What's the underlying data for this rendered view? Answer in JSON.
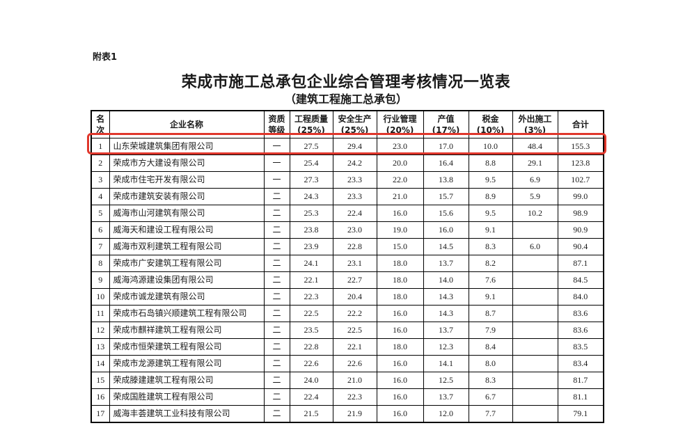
{
  "doc": {
    "annex_label": "附表1",
    "title": "荣成市施工总承包企业综合管理考核情况一览表",
    "subtitle": "（建筑工程施工总承包）"
  },
  "highlight": {
    "color": "#e0372c",
    "row_rank": "1"
  },
  "table": {
    "headers": [
      {
        "id": "rank",
        "lines": [
          "名",
          "次"
        ]
      },
      {
        "id": "company",
        "lines": [
          "企业名称"
        ]
      },
      {
        "id": "qualification",
        "lines": [
          "资质",
          "等级"
        ]
      },
      {
        "id": "quality",
        "lines": [
          "工程质量",
          "(25%)"
        ]
      },
      {
        "id": "safety",
        "lines": [
          "安全生产",
          "(25%)"
        ]
      },
      {
        "id": "industry",
        "lines": [
          "行业管理",
          "(20%)"
        ]
      },
      {
        "id": "output",
        "lines": [
          "产值",
          "(17%)"
        ]
      },
      {
        "id": "tax",
        "lines": [
          "税金",
          "(10%)"
        ]
      },
      {
        "id": "external",
        "lines": [
          "外出施工",
          "(3%)"
        ]
      },
      {
        "id": "total",
        "lines": [
          "合计"
        ]
      }
    ],
    "rows": [
      {
        "rank": "1",
        "company": "山东荣城建筑集团有限公司",
        "grade": "一",
        "quality": "27.5",
        "safety": "29.4",
        "industry": "23.0",
        "output": "17.0",
        "tax": "10.0",
        "external": "48.4",
        "total": "155.3",
        "highlighted": true
      },
      {
        "rank": "2",
        "company": "荣成市方大建设有限公司",
        "grade": "一",
        "quality": "25.4",
        "safety": "24.2",
        "industry": "20.0",
        "output": "16.4",
        "tax": "8.8",
        "external": "29.1",
        "total": "123.8",
        "highlighted": false
      },
      {
        "rank": "3",
        "company": "荣成市住宅开发有限公司",
        "grade": "一",
        "quality": "27.3",
        "safety": "23.3",
        "industry": "22.0",
        "output": "13.8",
        "tax": "9.5",
        "external": "6.9",
        "total": "102.7",
        "highlighted": false
      },
      {
        "rank": "4",
        "company": "荣成市建筑安装有限公司",
        "grade": "二",
        "quality": "24.3",
        "safety": "23.3",
        "industry": "21.0",
        "output": "15.7",
        "tax": "8.9",
        "external": "5.9",
        "total": "99.0",
        "highlighted": false
      },
      {
        "rank": "5",
        "company": "威海市山河建筑有限公司",
        "grade": "二",
        "quality": "25.3",
        "safety": "22.4",
        "industry": "16.0",
        "output": "15.6",
        "tax": "9.5",
        "external": "10.2",
        "total": "98.9",
        "highlighted": false
      },
      {
        "rank": "6",
        "company": "威海天和建设工程有限公司",
        "grade": "二",
        "quality": "23.8",
        "safety": "23.0",
        "industry": "19.0",
        "output": "16.0",
        "tax": "9.1",
        "external": "",
        "total": "90.9",
        "highlighted": false
      },
      {
        "rank": "7",
        "company": "威海市双利建筑工程有限公司",
        "grade": "二",
        "quality": "23.9",
        "safety": "22.8",
        "industry": "15.0",
        "output": "14.5",
        "tax": "8.3",
        "external": "6.0",
        "total": "90.4",
        "highlighted": false
      },
      {
        "rank": "8",
        "company": "荣成市广安建筑工程有限公司",
        "grade": "二",
        "quality": "24.1",
        "safety": "23.1",
        "industry": "18.0",
        "output": "13.7",
        "tax": "8.2",
        "external": "",
        "total": "87.1",
        "highlighted": false
      },
      {
        "rank": "9",
        "company": "威海鸿源建设集团有限公司",
        "grade": "二",
        "quality": "22.1",
        "safety": "22.7",
        "industry": "18.0",
        "output": "14.0",
        "tax": "7.6",
        "external": "",
        "total": "84.5",
        "highlighted": false
      },
      {
        "rank": "10",
        "company": "荣成市诚龙建筑有限公司",
        "grade": "二",
        "quality": "22.3",
        "safety": "20.4",
        "industry": "18.0",
        "output": "14.3",
        "tax": "9.1",
        "external": "",
        "total": "84.0",
        "highlighted": false
      },
      {
        "rank": "11",
        "company": "荣成市石岛镇兴顺建筑工程有限公司",
        "grade": "二",
        "quality": "22.5",
        "safety": "22.2",
        "industry": "16.0",
        "output": "14.3",
        "tax": "8.7",
        "external": "",
        "total": "83.6",
        "highlighted": false
      },
      {
        "rank": "12",
        "company": "荣成市麒祥建筑工程有限公司",
        "grade": "二",
        "quality": "23.5",
        "safety": "22.5",
        "industry": "16.0",
        "output": "13.7",
        "tax": "7.9",
        "external": "",
        "total": "83.6",
        "highlighted": false
      },
      {
        "rank": "13",
        "company": "荣成市恒荣建筑工程有限公司",
        "grade": "二",
        "quality": "22.8",
        "safety": "22.1",
        "industry": "18.0",
        "output": "12.3",
        "tax": "8.4",
        "external": "",
        "total": "83.5",
        "highlighted": false
      },
      {
        "rank": "14",
        "company": "荣成市龙源建筑工程有限公司",
        "grade": "二",
        "quality": "22.6",
        "safety": "22.6",
        "industry": "16.0",
        "output": "14.1",
        "tax": "8.0",
        "external": "",
        "total": "83.4",
        "highlighted": false
      },
      {
        "rank": "15",
        "company": "荣成滕建建筑工程有限公司",
        "grade": "二",
        "quality": "24.0",
        "safety": "21.0",
        "industry": "16.0",
        "output": "12.5",
        "tax": "8.3",
        "external": "",
        "total": "81.7",
        "highlighted": false
      },
      {
        "rank": "16",
        "company": "荣成国胜建筑工程有限公司",
        "grade": "二",
        "quality": "22.4",
        "safety": "22.3",
        "industry": "16.0",
        "output": "13.7",
        "tax": "6.7",
        "external": "",
        "total": "81.1",
        "highlighted": false
      },
      {
        "rank": "17",
        "company": "威海丰荟建筑工业科技有限公司",
        "grade": "二",
        "quality": "21.5",
        "safety": "21.9",
        "industry": "16.0",
        "output": "12.0",
        "tax": "7.7",
        "external": "",
        "total": "79.1",
        "highlighted": false
      }
    ]
  }
}
